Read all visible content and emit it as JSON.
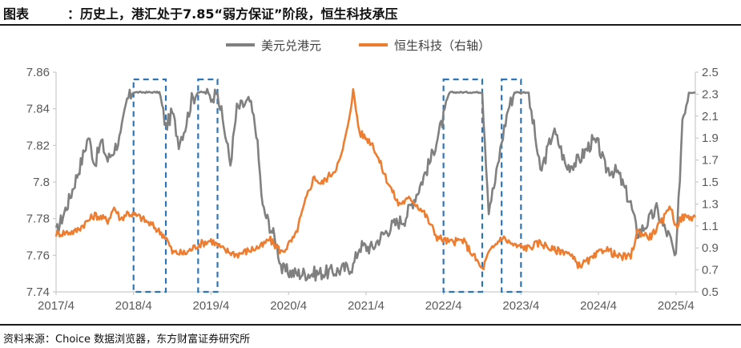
{
  "header": {
    "label": "图表",
    "title": "：历史上，港汇处于7.85“弱方保证”阶段，恒生科技承压"
  },
  "footer": {
    "source": "资料来源：Choice 数据浏览器，东方财富证券研究所"
  },
  "chart_data": {
    "type": "line",
    "title": "",
    "legend_placement": "top-center",
    "x_tick_labels": [
      "2017/4",
      "2018/4",
      "2019/4",
      "2020/4",
      "2021/4",
      "2022/4",
      "2023/4",
      "2024/4",
      "2025/4"
    ],
    "xlim": [
      "2017-04",
      "2025-07"
    ],
    "y_left": {
      "lim": [
        7.74,
        7.86
      ],
      "ticks": [
        "7.74",
        "7.76",
        "7.78",
        "7.8",
        "7.82",
        "7.84",
        "7.86"
      ]
    },
    "y_right": {
      "lim": [
        0.5,
        2.5
      ],
      "ticks": [
        "0.5",
        "0.7",
        "0.9",
        "1.1",
        "1.3",
        "1.5",
        "1.7",
        "1.9",
        "2.1",
        "2.3",
        "2.5"
      ]
    },
    "grid": false,
    "series": [
      {
        "name": "美元兑港元",
        "axis": "left",
        "color": "#808080",
        "points": [
          [
            "2017-04",
            7.772
          ],
          [
            "2017-06",
            7.79
          ],
          [
            "2017-08",
            7.812
          ],
          [
            "2017-09",
            7.825
          ],
          [
            "2017-10",
            7.81
          ],
          [
            "2017-11",
            7.822
          ],
          [
            "2017-12",
            7.812
          ],
          [
            "2018-01",
            7.818
          ],
          [
            "2018-02",
            7.825
          ],
          [
            "2018-03",
            7.845
          ],
          [
            "2018-04",
            7.849
          ],
          [
            "2018-06",
            7.849
          ],
          [
            "2018-08",
            7.849
          ],
          [
            "2018-09",
            7.83
          ],
          [
            "2018-10",
            7.838
          ],
          [
            "2018-11",
            7.822
          ],
          [
            "2018-12",
            7.83
          ],
          [
            "2019-01",
            7.845
          ],
          [
            "2019-02",
            7.849
          ],
          [
            "2019-03",
            7.849
          ],
          [
            "2019-04",
            7.846
          ],
          [
            "2019-05",
            7.849
          ],
          [
            "2019-06",
            7.83
          ],
          [
            "2019-07",
            7.81
          ],
          [
            "2019-08",
            7.84
          ],
          [
            "2019-09",
            7.842
          ],
          [
            "2019-10",
            7.844
          ],
          [
            "2019-11",
            7.828
          ],
          [
            "2019-12",
            7.786
          ],
          [
            "2020-02",
            7.768
          ],
          [
            "2020-03",
            7.752
          ],
          [
            "2020-05",
            7.75
          ],
          [
            "2020-08",
            7.75
          ],
          [
            "2020-11",
            7.751
          ],
          [
            "2021-02",
            7.754
          ],
          [
            "2021-03",
            7.765
          ],
          [
            "2021-05",
            7.764
          ],
          [
            "2021-06",
            7.769
          ],
          [
            "2021-08",
            7.776
          ],
          [
            "2021-10",
            7.78
          ],
          [
            "2021-12",
            7.795
          ],
          [
            "2022-02",
            7.812
          ],
          [
            "2022-04",
            7.835
          ],
          [
            "2022-05",
            7.849
          ],
          [
            "2022-07",
            7.849
          ],
          [
            "2022-09",
            7.849
          ],
          [
            "2022-10",
            7.849
          ],
          [
            "2022-11",
            7.786
          ],
          [
            "2022-12",
            7.8
          ],
          [
            "2023-01",
            7.822
          ],
          [
            "2023-02",
            7.84
          ],
          [
            "2023-03",
            7.849
          ],
          [
            "2023-05",
            7.849
          ],
          [
            "2023-06",
            7.83
          ],
          [
            "2023-07",
            7.805
          ],
          [
            "2023-08",
            7.816
          ],
          [
            "2023-09",
            7.828
          ],
          [
            "2023-10",
            7.82
          ],
          [
            "2023-11",
            7.808
          ],
          [
            "2024-01",
            7.812
          ],
          [
            "2024-03",
            7.822
          ],
          [
            "2024-04",
            7.82
          ],
          [
            "2024-05",
            7.808
          ],
          [
            "2024-07",
            7.805
          ],
          [
            "2024-09",
            7.788
          ],
          [
            "2024-10",
            7.772
          ],
          [
            "2024-11",
            7.775
          ],
          [
            "2024-12",
            7.78
          ],
          [
            "2025-01",
            7.785
          ],
          [
            "2025-02",
            7.776
          ],
          [
            "2025-03",
            7.77
          ],
          [
            "2025-04",
            7.757
          ],
          [
            "2025-05",
            7.835
          ],
          [
            "2025-06",
            7.849
          ],
          [
            "2025-07",
            7.849
          ]
        ]
      },
      {
        "name": "恒生科技（右轴）",
        "axis": "right",
        "color": "#ED7D31",
        "points": [
          [
            "2017-04",
            1.03
          ],
          [
            "2017-07",
            1.05
          ],
          [
            "2017-10",
            1.2
          ],
          [
            "2017-12",
            1.15
          ],
          [
            "2018-01",
            1.27
          ],
          [
            "2018-02",
            1.16
          ],
          [
            "2018-03",
            1.22
          ],
          [
            "2018-05",
            1.18
          ],
          [
            "2018-07",
            1.1
          ],
          [
            "2018-09",
            1.0
          ],
          [
            "2018-10",
            0.86
          ],
          [
            "2018-12",
            0.85
          ],
          [
            "2019-02",
            0.93
          ],
          [
            "2019-04",
            0.97
          ],
          [
            "2019-06",
            0.88
          ],
          [
            "2019-08",
            0.84
          ],
          [
            "2019-10",
            0.88
          ],
          [
            "2019-12",
            0.92
          ],
          [
            "2020-01",
            0.98
          ],
          [
            "2020-03",
            0.86
          ],
          [
            "2020-05",
            1.0
          ],
          [
            "2020-07",
            1.4
          ],
          [
            "2020-08",
            1.55
          ],
          [
            "2020-09",
            1.48
          ],
          [
            "2020-11",
            1.6
          ],
          [
            "2020-12",
            1.7
          ],
          [
            "2021-01",
            1.95
          ],
          [
            "2021-02",
            2.33
          ],
          [
            "2021-03",
            1.95
          ],
          [
            "2021-05",
            1.85
          ],
          [
            "2021-07",
            1.55
          ],
          [
            "2021-09",
            1.3
          ],
          [
            "2021-11",
            1.35
          ],
          [
            "2022-01",
            1.22
          ],
          [
            "2022-03",
            1.0
          ],
          [
            "2022-05",
            0.95
          ],
          [
            "2022-07",
            0.97
          ],
          [
            "2022-09",
            0.8
          ],
          [
            "2022-10",
            0.7
          ],
          [
            "2022-11",
            0.85
          ],
          [
            "2023-01",
            1.0
          ],
          [
            "2023-03",
            0.92
          ],
          [
            "2023-05",
            0.9
          ],
          [
            "2023-07",
            0.95
          ],
          [
            "2023-09",
            0.88
          ],
          [
            "2023-11",
            0.87
          ],
          [
            "2024-01",
            0.74
          ],
          [
            "2024-03",
            0.8
          ],
          [
            "2024-05",
            0.9
          ],
          [
            "2024-07",
            0.82
          ],
          [
            "2024-09",
            0.82
          ],
          [
            "2024-10",
            1.05
          ],
          [
            "2024-12",
            1.0
          ],
          [
            "2025-02",
            1.15
          ],
          [
            "2025-03",
            1.3
          ],
          [
            "2025-04",
            1.1
          ],
          [
            "2025-05",
            1.18
          ],
          [
            "2025-07",
            1.18
          ]
        ]
      }
    ],
    "highlight_periods": [
      [
        "2018-04",
        "2018-09"
      ],
      [
        "2019-02",
        "2019-05"
      ],
      [
        "2022-04",
        "2022-10"
      ],
      [
        "2023-01",
        "2023-04"
      ]
    ]
  }
}
